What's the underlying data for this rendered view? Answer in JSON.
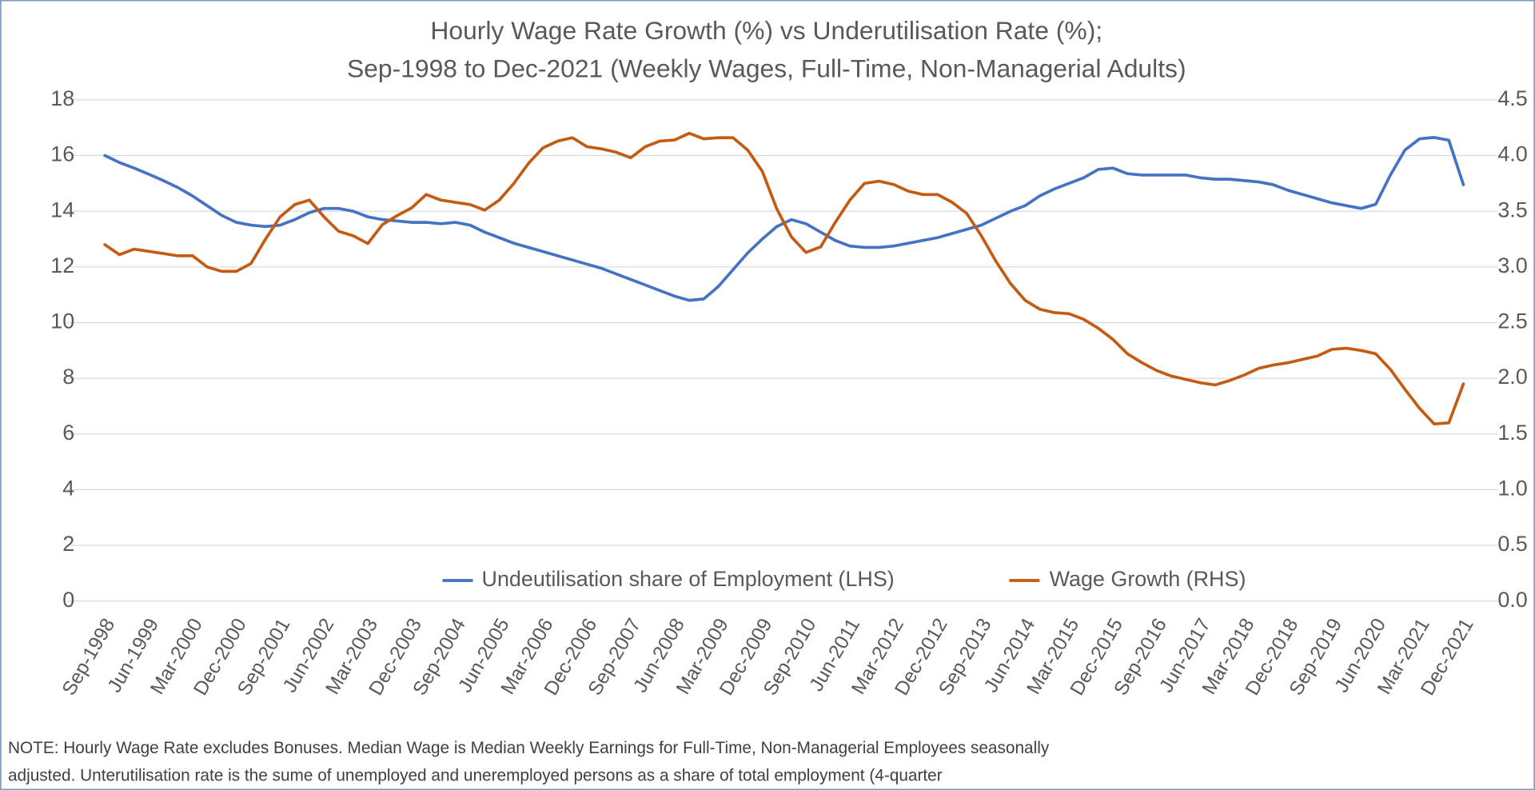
{
  "chart_data": {
    "type": "line",
    "title": [
      "Hourly Wage Rate Growth (%) vs Underutilisation Rate (%);",
      "Sep-1998 to Dec-2021 (Weekly Wages, Full-Time, Non-Managerial Adults)"
    ],
    "categories": [
      "Sep-1998",
      null,
      null,
      "Jun-1999",
      null,
      null,
      "Mar-2000",
      null,
      null,
      "Dec-2000",
      null,
      null,
      "Sep-2001",
      null,
      null,
      "Jun-2002",
      null,
      null,
      "Mar-2003",
      null,
      null,
      "Dec-2003",
      null,
      null,
      "Sep-2004",
      null,
      null,
      "Jun-2005",
      null,
      null,
      "Mar-2006",
      null,
      null,
      "Dec-2006",
      null,
      null,
      "Sep-2007",
      null,
      null,
      "Jun-2008",
      null,
      null,
      "Mar-2009",
      null,
      null,
      "Dec-2009",
      null,
      null,
      "Sep-2010",
      null,
      null,
      "Jun-2011",
      null,
      null,
      "Mar-2012",
      null,
      null,
      "Dec-2012",
      null,
      null,
      "Sep-2013",
      null,
      null,
      "Jun-2014",
      null,
      null,
      "Mar-2015",
      null,
      null,
      "Dec-2015",
      null,
      null,
      "Sep-2016",
      null,
      null,
      "Jun-2017",
      null,
      null,
      "Mar-2018",
      null,
      null,
      "Dec-2018",
      null,
      null,
      "Sep-2019",
      null,
      null,
      "Jun-2020",
      null,
      null,
      "Mar-2021",
      null,
      null,
      "Dec-2021"
    ],
    "series": [
      {
        "name": "Undeutilisation share of Employment (LHS)",
        "color": "#4472c4",
        "axis": "y",
        "values": [
          16.0,
          15.75,
          15.55,
          15.33,
          15.1,
          14.85,
          14.55,
          14.2,
          13.85,
          13.6,
          13.5,
          13.45,
          13.5,
          13.7,
          13.95,
          14.1,
          14.1,
          14.0,
          13.8,
          13.7,
          13.65,
          13.6,
          13.6,
          13.55,
          13.6,
          13.5,
          13.25,
          13.05,
          12.85,
          12.7,
          12.55,
          12.4,
          12.25,
          12.1,
          11.95,
          11.75,
          11.55,
          11.35,
          11.15,
          10.95,
          10.8,
          10.85,
          11.3,
          11.9,
          12.5,
          13.0,
          13.45,
          13.7,
          13.55,
          13.25,
          12.95,
          12.75,
          12.7,
          12.7,
          12.75,
          12.85,
          12.95,
          13.05,
          13.2,
          13.35,
          13.5,
          13.75,
          14.0,
          14.2,
          14.55,
          14.8,
          15.0,
          15.2,
          15.5,
          15.55,
          15.35,
          15.3,
          15.3,
          15.3,
          15.3,
          15.2,
          15.15,
          15.15,
          15.1,
          15.05,
          14.95,
          14.75,
          14.6,
          14.45,
          14.3,
          14.2,
          14.1,
          14.25,
          15.3,
          16.2,
          16.6,
          16.65,
          16.55,
          14.95
        ]
      },
      {
        "name": "Wage Growth (RHS)",
        "color": "#c55a11",
        "axis": "y2",
        "values": [
          3.2,
          3.11,
          3.16,
          3.14,
          3.12,
          3.1,
          3.1,
          3.0,
          2.96,
          2.96,
          3.03,
          3.25,
          3.45,
          3.56,
          3.6,
          3.45,
          3.32,
          3.28,
          3.21,
          3.38,
          3.46,
          3.53,
          3.65,
          3.6,
          3.58,
          3.56,
          3.51,
          3.6,
          3.75,
          3.93,
          4.07,
          4.13,
          4.16,
          4.08,
          4.06,
          4.03,
          3.98,
          4.08,
          4.13,
          4.14,
          4.2,
          4.15,
          4.16,
          4.16,
          4.05,
          3.86,
          3.52,
          3.27,
          3.13,
          3.18,
          3.4,
          3.6,
          3.75,
          3.77,
          3.74,
          3.68,
          3.65,
          3.65,
          3.58,
          3.48,
          3.28,
          3.05,
          2.85,
          2.7,
          2.62,
          2.59,
          2.58,
          2.53,
          2.45,
          2.35,
          2.22,
          2.14,
          2.07,
          2.02,
          1.99,
          1.96,
          1.94,
          1.98,
          2.03,
          2.09,
          2.12,
          2.14,
          2.17,
          2.2,
          2.26,
          2.27,
          2.25,
          2.22,
          2.08,
          1.9,
          1.73,
          1.59,
          1.6,
          1.95
        ]
      }
    ],
    "ylim": [
      0,
      18
    ],
    "yticks": [
      0,
      2,
      4,
      6,
      8,
      10,
      12,
      14,
      16,
      18
    ],
    "y2lim": [
      0,
      4.5
    ],
    "y2ticks": [
      {
        "value": 0,
        "label": "0.0"
      },
      0.5,
      {
        "value": 1,
        "label": "1.0"
      },
      1.5,
      {
        "value": 2,
        "label": "2.0"
      },
      2.5,
      {
        "value": 3,
        "label": "3.0"
      },
      3.5,
      {
        "value": 4,
        "label": "4.0"
      },
      4.5
    ],
    "grid": true,
    "legend": "bottom",
    "notes": [
      "NOTE: Hourly Wage Rate excludes Bonuses. Median Wage is Median Weekly Earnings for Full-Time, Non-Managerial Employees seasonally",
      "adjusted. Unterutilisation rate is the sume of unemployed and uneremployed persons as a share of total employment (4-quarter"
    ]
  }
}
